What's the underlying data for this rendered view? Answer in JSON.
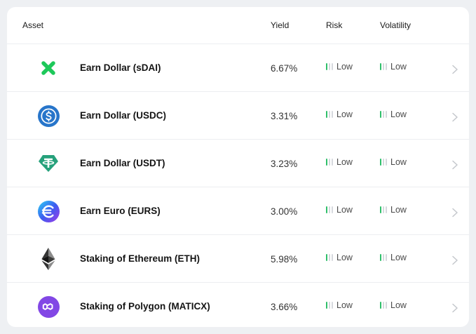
{
  "header": {
    "asset": "Asset",
    "yield": "Yield",
    "risk": "Risk",
    "volatility": "Volatility"
  },
  "colors": {
    "level_active": "#2fbf6a",
    "level_inactive": "#d6d9de",
    "sdai": "#1ec85a",
    "usdc": "#2775ca",
    "usdt": "#26a17b",
    "eurs": "#3b5cf0",
    "eth": "#343434",
    "matic": "#8247e5"
  },
  "rows": [
    {
      "icon": "sdai-cross-icon",
      "name": "Earn Dollar (sDAI)",
      "yield": "6.67%",
      "risk": "Low",
      "volatility": "Low",
      "risk_level": 1,
      "volatility_level": 1
    },
    {
      "icon": "usdc-coin-icon",
      "name": "Earn Dollar (USDC)",
      "yield": "3.31%",
      "risk": "Low",
      "volatility": "Low",
      "risk_level": 1,
      "volatility_level": 1
    },
    {
      "icon": "usdt-tether-icon",
      "name": "Earn Dollar (USDT)",
      "yield": "3.23%",
      "risk": "Low",
      "volatility": "Low",
      "risk_level": 1,
      "volatility_level": 1
    },
    {
      "icon": "eurs-euro-icon",
      "name": "Earn Euro (EURS)",
      "yield": "3.00%",
      "risk": "Low",
      "volatility": "Low",
      "risk_level": 1,
      "volatility_level": 1
    },
    {
      "icon": "ethereum-icon",
      "name": "Staking of Ethereum (ETH)",
      "yield": "5.98%",
      "risk": "Low",
      "volatility": "Low",
      "risk_level": 1,
      "volatility_level": 1
    },
    {
      "icon": "polygon-icon",
      "name": "Staking of Polygon (MATICX)",
      "yield": "3.66%",
      "risk": "Low",
      "volatility": "Low",
      "risk_level": 1,
      "volatility_level": 1
    }
  ]
}
